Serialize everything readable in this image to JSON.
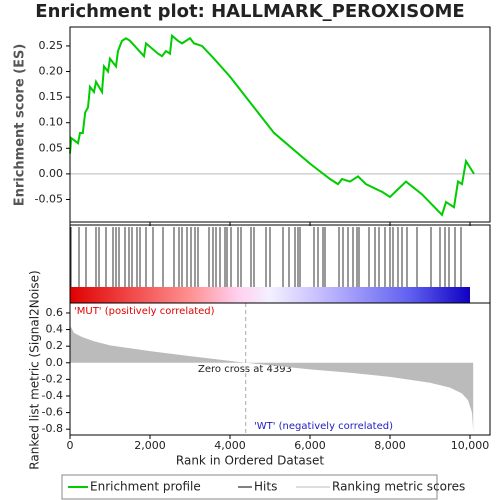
{
  "chart_data": {
    "type": "line",
    "title": "Enrichment plot: HALLMARK_PEROXISOME",
    "xlabel": "Rank in Ordered Dataset",
    "xlim": [
      0,
      10500
    ],
    "xticks": [
      0,
      {
        "value": 2000,
        "label": "2,000"
      },
      {
        "value": 4000,
        "label": "4,000"
      },
      {
        "value": 6000,
        "label": "6,000"
      },
      {
        "value": 8000,
        "label": "8,000"
      },
      {
        "value": 10000,
        "label": "10,000"
      }
    ],
    "es": {
      "name": "Enrichment profile",
      "ylabel": "Enrichment score (ES)",
      "color": "#00cc00",
      "ylim": [
        -0.094,
        0.287
      ],
      "yticks": [
        -0.05,
        {
          "value": 0,
          "label": "0.00"
        },
        0.05,
        {
          "value": 0.1,
          "label": "0.10"
        },
        0.15,
        {
          "value": 0.2,
          "label": "0.20"
        },
        0.25
      ],
      "x": [
        0,
        30,
        200,
        250,
        320,
        380,
        450,
        500,
        600,
        650,
        800,
        850,
        950,
        1000,
        1150,
        1200,
        1300,
        1400,
        1500,
        1850,
        1900,
        2200,
        2300,
        2400,
        2500,
        2550,
        2700,
        2800,
        3000,
        3100,
        3300,
        3600,
        4000,
        4500,
        4800,
        5100,
        5400,
        6000,
        6500,
        6700,
        6800,
        7000,
        7200,
        7400,
        7800,
        8000,
        8200,
        8400,
        8800,
        9300,
        9400,
        9600,
        9700,
        9800,
        9900,
        10100
      ],
      "values": [
        0.04,
        0.07,
        0.06,
        0.08,
        0.08,
        0.12,
        0.13,
        0.17,
        0.16,
        0.18,
        0.16,
        0.21,
        0.2,
        0.225,
        0.21,
        0.24,
        0.26,
        0.265,
        0.26,
        0.23,
        0.255,
        0.235,
        0.23,
        0.24,
        0.235,
        0.27,
        0.26,
        0.255,
        0.265,
        0.255,
        0.25,
        0.225,
        0.19,
        0.14,
        0.11,
        0.08,
        0.06,
        0.02,
        -0.01,
        -0.02,
        -0.01,
        -0.015,
        -0.005,
        -0.02,
        -0.035,
        -0.045,
        -0.03,
        -0.015,
        -0.04,
        -0.08,
        -0.055,
        -0.065,
        -0.015,
        -0.02,
        0.025,
        0.0
      ]
    },
    "hits": {
      "name": "Hits",
      "color": "#000000",
      "x": [
        25,
        225,
        400,
        650,
        725,
        900,
        1075,
        1150,
        1225,
        1375,
        1475,
        1550,
        1675,
        1750,
        1900,
        2075,
        2325,
        2600,
        2725,
        2800,
        2925,
        3025,
        3125,
        3200,
        3475,
        3575,
        3650,
        3750,
        3875,
        3925,
        4025,
        4200,
        4275,
        4525,
        4600,
        4900,
        5000,
        5325,
        5475,
        5625,
        5700,
        5750,
        6100,
        6200,
        6325,
        6375,
        6725,
        6825,
        6950,
        7075,
        7175,
        7225,
        7475,
        7625,
        7725,
        7875,
        8000,
        8075,
        8200,
        8300,
        8425,
        8675,
        9025,
        9250,
        9375,
        9475,
        9625,
        9775
      ]
    },
    "metric": {
      "name": "Ranking metric scores",
      "ylabel": "Ranked list metric (Signal2Noise)",
      "color": "#bbbbbb",
      "ylim": [
        -0.87,
        0.72
      ],
      "yticks": [
        0.6,
        0.4,
        0.2,
        {
          "value": 0,
          "label": "0.0"
        },
        -0.2,
        -0.4,
        -0.6,
        -0.8
      ],
      "x": [
        0,
        100,
        300,
        600,
        1000,
        2000,
        3000,
        4393,
        5000,
        6000,
        7000,
        8000,
        9000,
        9500,
        9800,
        9950,
        10050,
        10080
      ],
      "values": [
        0.45,
        0.36,
        0.31,
        0.26,
        0.21,
        0.14,
        0.08,
        0,
        -0.03,
        -0.08,
        -0.12,
        -0.17,
        -0.24,
        -0.3,
        -0.37,
        -0.45,
        -0.6,
        -0.82
      ]
    },
    "zero_cross": 4393,
    "zero_cross_label": "Zero cross at 4393",
    "pos_label": "'MUT' (positively correlated)",
    "neg_label": "'WT' (negatively correlated)"
  }
}
